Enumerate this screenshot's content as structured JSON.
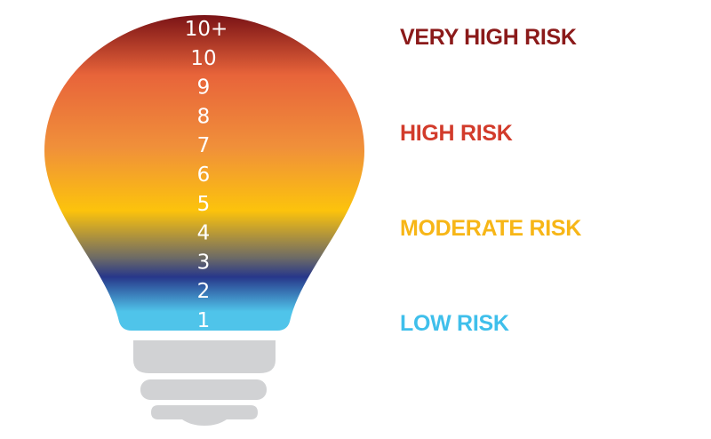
{
  "scale_numbers": [
    "10+",
    "10",
    "9",
    "8",
    "7",
    "6",
    "5",
    "4",
    "3",
    "2",
    "1"
  ],
  "risk_levels": [
    {
      "label": "VERY HIGH RISK",
      "color": "#8b1a1a"
    },
    {
      "label": "HIGH RISK",
      "color": "#d23b2b"
    },
    {
      "label": "MODERATE RISK",
      "color": "#f7b617"
    },
    {
      "label": "LOW RISK",
      "color": "#3fbfeb"
    }
  ],
  "gradient_colors": [
    "#7a1316",
    "#e8643a",
    "#f0903a",
    "#fcc30c",
    "#6c6a66",
    "#27378a",
    "#4fc4ea"
  ],
  "base_color": "#d1d2d4"
}
